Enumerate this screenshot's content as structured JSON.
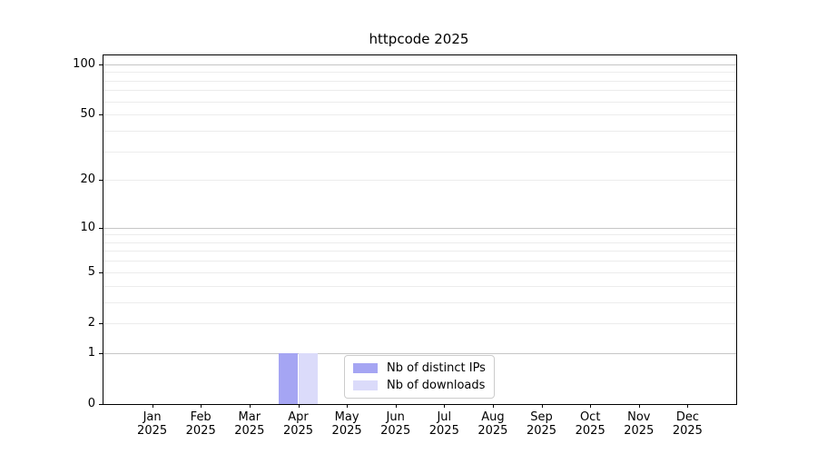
{
  "chart_data": {
    "type": "bar",
    "title": "httpcode 2025",
    "x_tick_labels": [
      [
        "Jan",
        "2025"
      ],
      [
        "Feb",
        "2025"
      ],
      [
        "Mar",
        "2025"
      ],
      [
        "Apr",
        "2025"
      ],
      [
        "May",
        "2025"
      ],
      [
        "Jun",
        "2025"
      ],
      [
        "Jul",
        "2025"
      ],
      [
        "Aug",
        "2025"
      ],
      [
        "Sep",
        "2025"
      ],
      [
        "Oct",
        "2025"
      ],
      [
        "Nov",
        "2025"
      ],
      [
        "Dec",
        "2025"
      ]
    ],
    "series": [
      {
        "name": "Nb of distinct IPs",
        "color": "#a5a5f3",
        "values": [
          0,
          0,
          0,
          1,
          0,
          0,
          0,
          0,
          0,
          0,
          0,
          0
        ]
      },
      {
        "name": "Nb of downloads",
        "color": "#dbdbfa",
        "values": [
          0,
          0,
          0,
          1,
          0,
          0,
          0,
          0,
          0,
          0,
          0,
          0
        ]
      }
    ],
    "y_scale": "log10(1+v)",
    "ylim": [
      0,
      113
    ],
    "y_ticks": [
      0,
      1,
      2,
      5,
      10,
      20,
      50,
      100
    ],
    "y_major_gridlines": [
      1,
      10,
      100
    ],
    "y_minor_gridlines": [
      2,
      3,
      4,
      5,
      6,
      7,
      8,
      9,
      20,
      30,
      40,
      50,
      60,
      70,
      80,
      90
    ],
    "grid": "horizontal",
    "legend_position": "lower-center",
    "colors": {
      "axis": "#000000",
      "major_grid": "#c6c6c6",
      "minor_grid": "#ececec",
      "legend_border": "#cccccc",
      "background": "#ffffff"
    }
  }
}
